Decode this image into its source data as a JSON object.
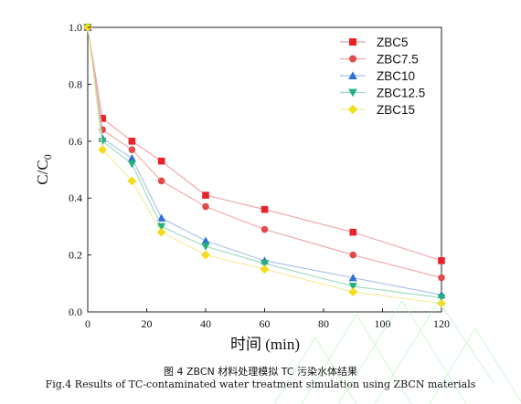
{
  "chart_data": {
    "type": "line",
    "x": [
      0,
      5,
      15,
      25,
      40,
      60,
      90,
      120
    ],
    "series": [
      {
        "name": "ZBC5",
        "marker": "square",
        "color": "#e8222a",
        "line_color": "#f0a0a8",
        "values": [
          1.0,
          0.68,
          0.6,
          0.53,
          0.41,
          0.36,
          0.28,
          0.18
        ]
      },
      {
        "name": "ZBC7.5",
        "marker": "circle",
        "color": "#e34b4b",
        "line_color": "#f2a3a3",
        "values": [
          1.0,
          0.64,
          0.57,
          0.46,
          0.37,
          0.29,
          0.2,
          0.12
        ]
      },
      {
        "name": "ZBC10",
        "marker": "triangle-up",
        "color": "#2f6fd6",
        "line_color": "#a9c1ea",
        "values": [
          1.0,
          0.61,
          0.54,
          0.33,
          0.25,
          0.18,
          0.12,
          0.06
        ]
      },
      {
        "name": "ZBC12.5",
        "marker": "triangle-down",
        "color": "#23b07a",
        "line_color": "#9ad9bf",
        "values": [
          1.0,
          0.6,
          0.52,
          0.3,
          0.23,
          0.17,
          0.09,
          0.05
        ]
      },
      {
        "name": "ZBC15",
        "marker": "diamond",
        "color": "#f2dc1b",
        "line_color": "#f3ea98",
        "values": [
          1.0,
          0.57,
          0.46,
          0.28,
          0.2,
          0.15,
          0.07,
          0.03
        ]
      }
    ],
    "xlim": [
      0,
      120
    ],
    "ylim": [
      0,
      1.0
    ],
    "xticks": [
      0,
      20,
      40,
      60,
      80,
      100,
      120
    ],
    "yticks": [
      0.0,
      0.2,
      0.4,
      0.6,
      0.8,
      1.0
    ],
    "xtick_labels": [
      "0",
      "20",
      "40",
      "60",
      "80",
      "100",
      "120"
    ],
    "ytick_labels": [
      "0.0",
      "0.2",
      "0.4",
      "0.6",
      "0.8",
      "1.0"
    ],
    "xlabel": "时间 (min)",
    "ylabel_main": "C/C",
    "ylabel_sub": "0",
    "legend_position": "top-right",
    "grid": false
  },
  "caption": {
    "cn": "图 4 ZBCN 材料处理模拟 TC 污染水体结果",
    "en": "Fig.4    Results of TC-contaminated water treatment simulation using ZBCN materials"
  }
}
